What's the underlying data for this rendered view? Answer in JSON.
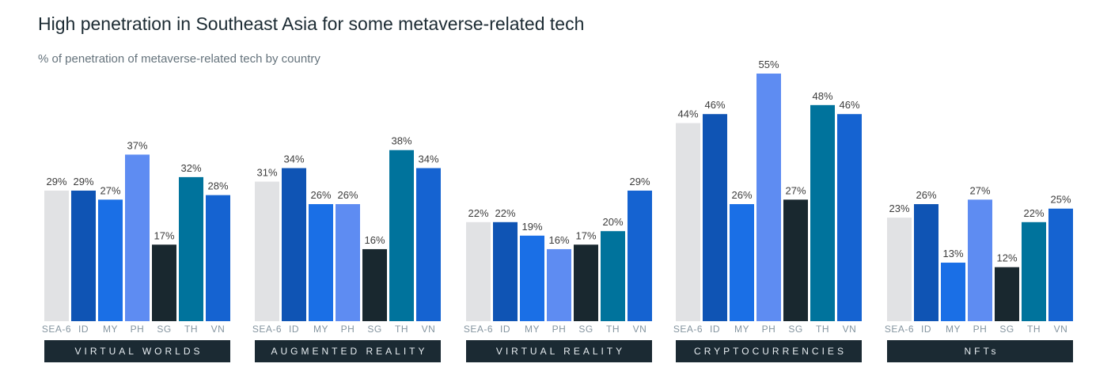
{
  "title": "High penetration in Southeast Asia for some metaverse-related tech",
  "subtitle": "% of penetration of metaverse-related tech by country",
  "chart_data": {
    "type": "bar",
    "categories": [
      "SEA-6",
      "ID",
      "MY",
      "PH",
      "SG",
      "TH",
      "VN"
    ],
    "colors": [
      "#e1e2e4",
      "#0f54b4",
      "#1a6fe6",
      "#5e8cf2",
      "#19282f",
      "#00739c",
      "#1563d1"
    ],
    "ylim": [
      0,
      55
    ],
    "grid": false,
    "value_format": "percent",
    "panels": [
      {
        "label": "VIRTUAL WORLDS",
        "values": [
          29,
          29,
          27,
          37,
          17,
          32,
          28
        ]
      },
      {
        "label": "AUGMENTED REALITY",
        "values": [
          31,
          34,
          26,
          26,
          16,
          38,
          34
        ]
      },
      {
        "label": "VIRTUAL REALITY",
        "values": [
          22,
          22,
          19,
          16,
          17,
          20,
          29
        ]
      },
      {
        "label": "CRYPTOCURRENCIES",
        "values": [
          44,
          46,
          26,
          55,
          27,
          48,
          46
        ]
      },
      {
        "label": "NFTs",
        "values": [
          23,
          26,
          13,
          27,
          12,
          22,
          25
        ]
      }
    ]
  }
}
